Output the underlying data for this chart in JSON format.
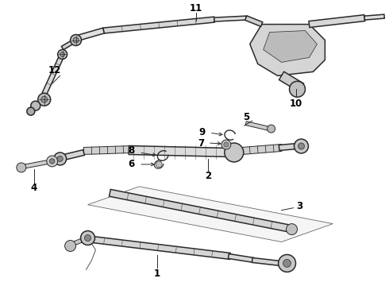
{
  "bg_color": "#ffffff",
  "line_color": "#2a2a2a",
  "label_color": "#000000",
  "fig_width": 4.9,
  "fig_height": 3.6,
  "dpi": 100,
  "label_fontsize": 8.5,
  "lw_main": 1.1,
  "lw_thin": 0.7,
  "lw_detail": 0.5,
  "fc_light": "#e8e8e8",
  "fc_mid": "#d0d0d0",
  "fc_dark": "#aaaaaa"
}
